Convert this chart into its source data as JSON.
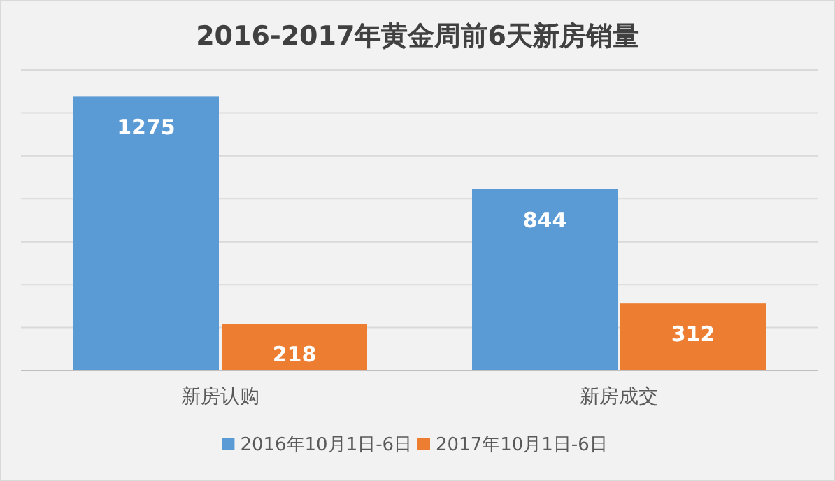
{
  "chart_data": {
    "type": "bar",
    "title": "2016-2017年黄金周前6天新房销量",
    "categories": [
      "新房认购",
      "新房成交"
    ],
    "series": [
      {
        "name": "2016年10月1日-6日",
        "color": "#5b9bd5",
        "values": [
          1275,
          844
        ]
      },
      {
        "name": "2017年10月1日-6日",
        "color": "#ed7d31",
        "values": [
          218,
          312
        ]
      }
    ],
    "ylim": [
      0,
      1400
    ],
    "yticks": [
      {
        "value": 0,
        "label": null
      },
      {
        "value": 200,
        "label": null
      },
      {
        "value": 400,
        "label": null
      },
      {
        "value": 600,
        "label": null
      },
      {
        "value": 800,
        "label": null
      },
      {
        "value": 1000,
        "label": null
      },
      {
        "value": 1200,
        "label": null
      },
      {
        "value": 1400,
        "label": null
      }
    ],
    "grid": "y",
    "tick_labels": "x",
    "data_labels": true,
    "legend": "bottom"
  }
}
